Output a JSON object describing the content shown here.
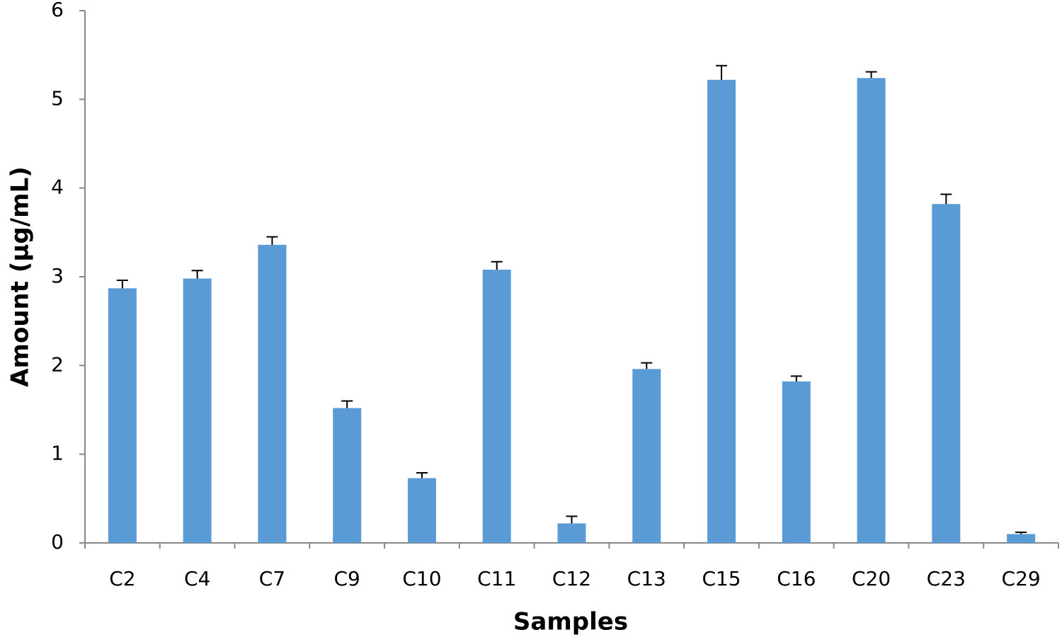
{
  "chart_data": {
    "type": "bar",
    "x_label": "Samples",
    "y_label": "Amount (µg/mL)",
    "categories": [
      "C2",
      "C4",
      "C7",
      "C9",
      "C10",
      "C11",
      "C12",
      "C13",
      "C15",
      "C16",
      "C20",
      "C23",
      "C29"
    ],
    "values": [
      2.87,
      2.98,
      3.36,
      1.52,
      0.73,
      3.08,
      0.22,
      1.96,
      5.22,
      1.82,
      5.24,
      3.82,
      0.1
    ],
    "errors": [
      0.09,
      0.09,
      0.09,
      0.08,
      0.06,
      0.09,
      0.08,
      0.07,
      0.16,
      0.06,
      0.07,
      0.11,
      0.02
    ],
    "color": "#5b9bd5",
    "ylim": [
      0,
      6
    ],
    "yticks": [
      0,
      1,
      2,
      3,
      4,
      5,
      6
    ],
    "grid": false
  }
}
